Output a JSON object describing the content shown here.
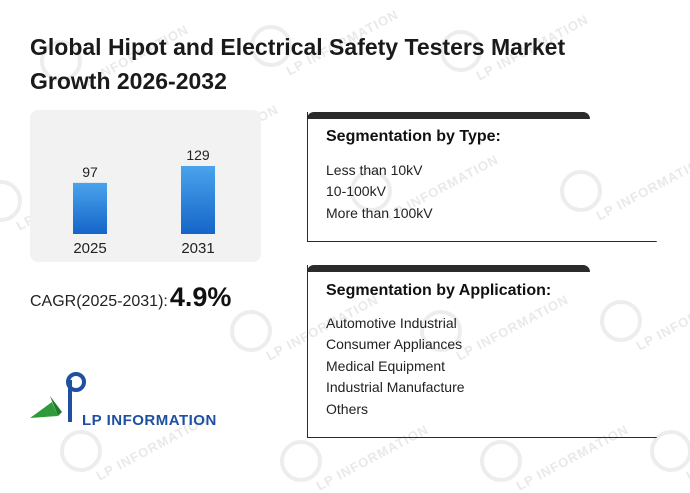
{
  "title": "Global Hipot and Electrical Safety Testers Market Growth 2026-2032",
  "chart_data": {
    "type": "bar",
    "categories": [
      "2025",
      "2031"
    ],
    "values": [
      97,
      129
    ],
    "colors": {
      "bar_top": "#4aa3ec",
      "bar_bottom": "#1565c8"
    }
  },
  "cagr": {
    "label": "CAGR(2025-2031):",
    "value": "4.9%"
  },
  "segments": [
    {
      "title": "Segmentation by Type:",
      "items": [
        "Less than 10kV",
        "10-100kV",
        "More than 100kV"
      ]
    },
    {
      "title": "Segmentation by Application:",
      "items": [
        "Automotive Industrial",
        "Consumer Appliances",
        "Medical Equipment",
        "Industrial Manufacture",
        "Others"
      ]
    }
  ],
  "logo": {
    "text": "LP INFORMATION"
  },
  "watermark": "LP INFORMATION"
}
